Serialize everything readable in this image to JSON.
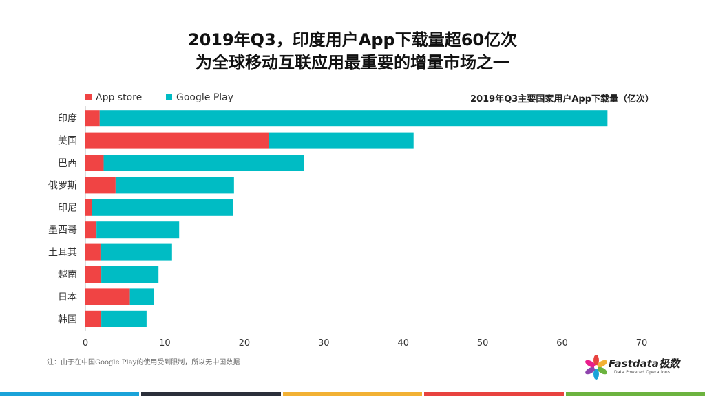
{
  "title_line1": "2019年Q3，印度用户App下载量超60亿次",
  "title_line2": "为全球移动互联应用最重要的增量市场之一",
  "note": "注：由于在中国Google Play的使用受到限制，所以无中国数据",
  "logo": {
    "name": "Fastdata极数",
    "tagline": "Data Powered Operations"
  },
  "bottom_bar_colors": [
    "#1aa3d9",
    "#2b2f3a",
    "#f2b134",
    "#e8423f",
    "#6cb33f"
  ],
  "chart_data": {
    "type": "bar",
    "orientation": "horizontal",
    "stacked": true,
    "subtitle": "2019年Q3主要国家用户App下载量（亿次）",
    "categories": [
      "印度",
      "美国",
      "巴西",
      "俄罗斯",
      "印尼",
      "墨西哥",
      "土耳其",
      "越南",
      "日本",
      "韩国"
    ],
    "series": [
      {
        "name": "App store",
        "color": "#f04444",
        "values": [
          1.8,
          23.1,
          2.3,
          3.8,
          0.8,
          1.4,
          1.9,
          2.0,
          5.6,
          2.0
        ]
      },
      {
        "name": "Google Play",
        "color": "#00bcc4",
        "values": [
          63.9,
          18.2,
          25.2,
          14.9,
          17.8,
          10.4,
          9.0,
          7.2,
          3.0,
          5.7
        ]
      }
    ],
    "xlim": [
      0,
      70
    ],
    "xticks": [
      0,
      10,
      20,
      30,
      40,
      50,
      60,
      70
    ],
    "legend_position": "top-left",
    "grid": false
  }
}
